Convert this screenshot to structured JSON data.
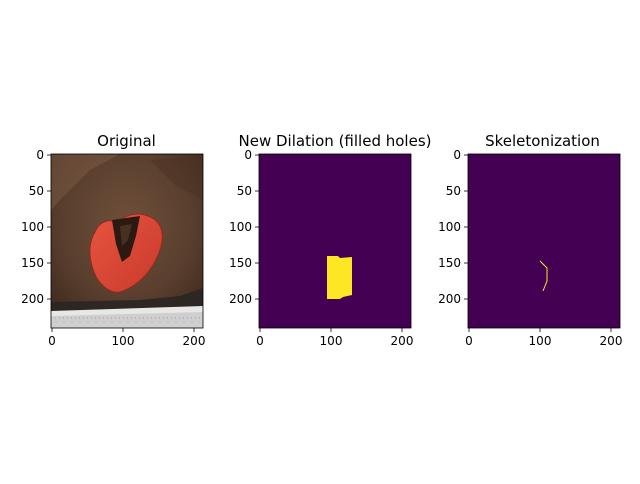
{
  "figure": {
    "background": "#ffffff",
    "panels": [
      {
        "title": "Original",
        "x_ticks": [
          "0",
          "100",
          "200"
        ],
        "y_ticks": [
          "0",
          "50",
          "100",
          "150",
          "200"
        ],
        "image_kind": "wound-photo"
      },
      {
        "title": "New Dilation (filled holes)",
        "x_ticks": [
          "0",
          "100",
          "200"
        ],
        "y_ticks": [
          "0",
          "50",
          "100",
          "150",
          "200"
        ],
        "image_kind": "mask",
        "colors": {
          "background": "#440154",
          "foreground": "#fde725"
        }
      },
      {
        "title": "Skeletonization",
        "x_ticks": [
          "0",
          "100",
          "200"
        ],
        "y_ticks": [
          "0",
          "50",
          "100",
          "150",
          "200"
        ],
        "image_kind": "skeleton",
        "colors": {
          "background": "#440154",
          "foreground": "#fde725"
        }
      }
    ]
  }
}
